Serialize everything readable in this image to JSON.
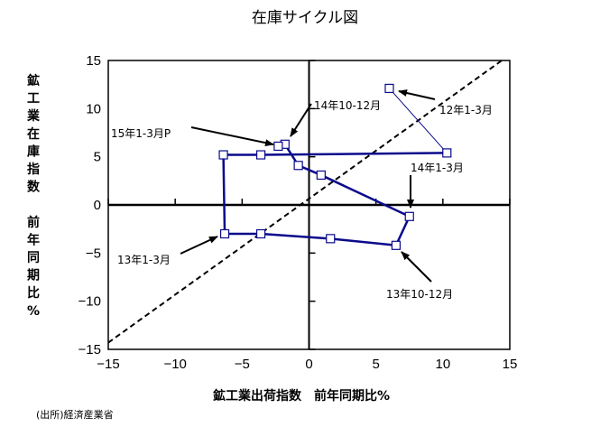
{
  "chart_data": {
    "type": "line",
    "title": "在庫サイクル図",
    "xlabel": "鉱工業出荷指数　前年同期比%",
    "ylabel_lines": [
      "鉱",
      "工",
      "業",
      "在",
      "庫",
      "指",
      "数",
      "",
      "前",
      "年",
      "同",
      "期",
      "比",
      "%"
    ],
    "xlim": [
      -15,
      15
    ],
    "ylim": [
      -15,
      15
    ],
    "xticks": [
      -15,
      -10,
      -5,
      0,
      5,
      10,
      15
    ],
    "yticks": [
      -15,
      -10,
      -5,
      0,
      5,
      10,
      15
    ],
    "grid": false,
    "series": [
      {
        "points": [
          {
            "x": 6.0,
            "y": 12.1
          },
          {
            "x": 10.3,
            "y": 5.4
          },
          {
            "x": -3.6,
            "y": 5.2
          },
          {
            "x": -6.4,
            "y": 5.2
          },
          {
            "x": -6.3,
            "y": -3.0
          },
          {
            "x": -3.6,
            "y": -3.0
          },
          {
            "x": 1.6,
            "y": -3.5
          },
          {
            "x": 6.5,
            "y": -4.2
          },
          {
            "x": 7.5,
            "y": -1.2
          },
          {
            "x": 0.9,
            "y": 3.1
          },
          {
            "x": -0.8,
            "y": 4.1
          },
          {
            "x": -1.8,
            "y": 6.3
          },
          {
            "x": -2.3,
            "y": 6.1
          }
        ],
        "color": "#0a0a8c"
      }
    ],
    "reference_line": {
      "style": "dashed",
      "color": "#000000",
      "points": [
        {
          "x": -15,
          "y": -14.3
        },
        {
          "x": 14.4,
          "y": 15
        }
      ]
    },
    "annotations": [
      {
        "text": "12年1-3月",
        "point_index": 0
      },
      {
        "text": "13年1-3月",
        "point_index": 4
      },
      {
        "text": "13年10-12月",
        "point_index": 7
      },
      {
        "text": "14年1-3月",
        "point_index": 8
      },
      {
        "text": "14年10-12月",
        "point_index": 11
      },
      {
        "text": "15年1-3月P",
        "point_index": 12
      }
    ]
  },
  "source": "(出所)経済産業省"
}
